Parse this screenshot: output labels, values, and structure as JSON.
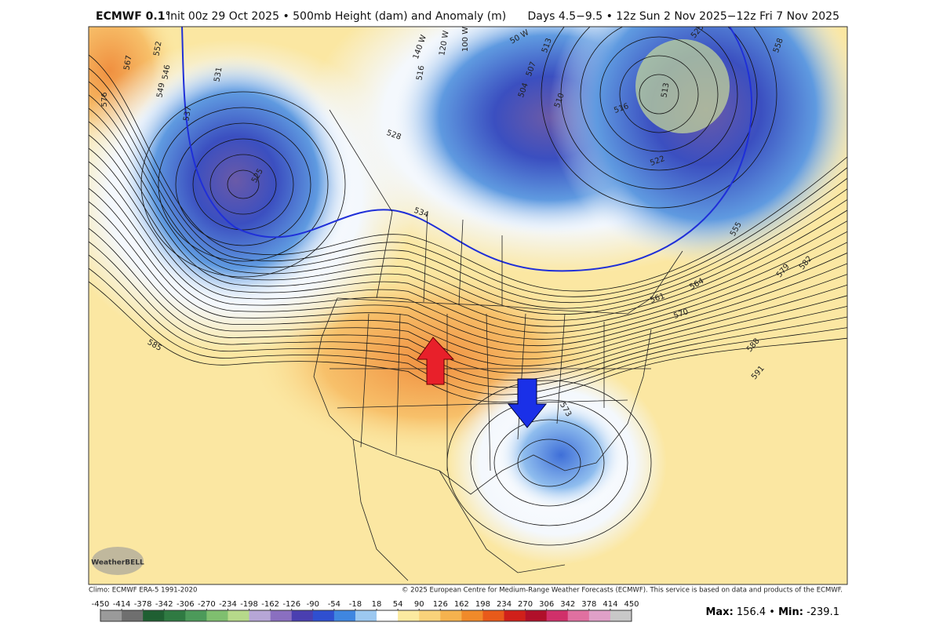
{
  "header": {
    "title": "ECMWF 0.1°",
    "subtitle": "Init 00z 29 Oct 2025 • 500mb Height (dam) and Anomaly (m)",
    "period": "Days 4.5−9.5 • 12z Sun 2 Nov 2025−12z Fri 7 Nov 2025"
  },
  "map_labels": [
    "576",
    "567",
    "552",
    "546",
    "549",
    "537",
    "531",
    "525",
    "528",
    "516",
    "513",
    "507",
    "504",
    "510",
    "516",
    "522",
    "513",
    "525",
    "558",
    "555",
    "564",
    "561",
    "570",
    "579",
    "582",
    "588",
    "591",
    "585",
    "573",
    "534",
    "140 W",
    "120 W",
    "100 W",
    "50 W"
  ],
  "logo": "WeatherBELL",
  "footer": {
    "climo": "Climo: ECMWF ERA-5 1991-2020",
    "copyright": "© 2025 European Centre for Medium-Range Weather Forecasts (ECMWF). This service is based on data and products of the ECMWF."
  },
  "colorbar": {
    "ticks": [
      -450,
      -414,
      -378,
      -342,
      -306,
      -270,
      -234,
      -198,
      -162,
      -126,
      -90,
      -54,
      -18,
      18,
      54,
      90,
      126,
      162,
      198,
      234,
      270,
      306,
      342,
      378,
      414,
      450
    ],
    "colors": [
      "#9a9a9a",
      "#6f6f6f",
      "#1f5f32",
      "#2f7a42",
      "#4c9a5a",
      "#7fbf6f",
      "#b6d98a",
      "#b6a6d6",
      "#8a6fc0",
      "#4a3fb0",
      "#2f4fd0",
      "#3f86e0",
      "#9cc8f0",
      "#ffffff",
      "#fbeaa0",
      "#f9d27a",
      "#f5b24e",
      "#f08a2a",
      "#e85a1a",
      "#d0201a",
      "#b0102a",
      "#d0306a",
      "#e070a0",
      "#e0a0c8",
      "#c8c8c8"
    ]
  },
  "stats": {
    "max_label": "Max:",
    "max": 156.4,
    "separator": "•",
    "min_label": "Min:",
    "min": -239.1
  }
}
